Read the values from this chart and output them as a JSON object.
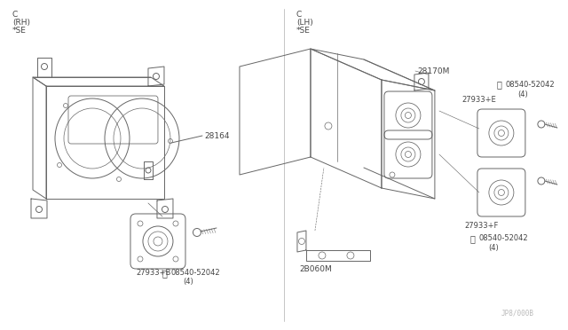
{
  "bg_color": "#ffffff",
  "lc": "#666666",
  "tc": "#444444",
  "lw": 0.7,
  "left_labels": [
    "C",
    "(RH)",
    "*SE"
  ],
  "right_labels": [
    "C",
    "(LH)",
    "*SE"
  ],
  "parts": {
    "left_box": "28164",
    "right_box_top": "28170M",
    "right_bracket": "2B060M",
    "left_spk": "27933+B",
    "left_screw_label": "08540-52042",
    "left_screw_qty": "(4)",
    "right_spk_e": "27933+E",
    "right_screw_e_label": "08540-52042",
    "right_screw_e_qty": "(4)",
    "right_spk_f": "27933+F",
    "right_screw_f_label": "08540-52042",
    "right_screw_f_qty": "(4)"
  },
  "watermark": "JP8/000B"
}
